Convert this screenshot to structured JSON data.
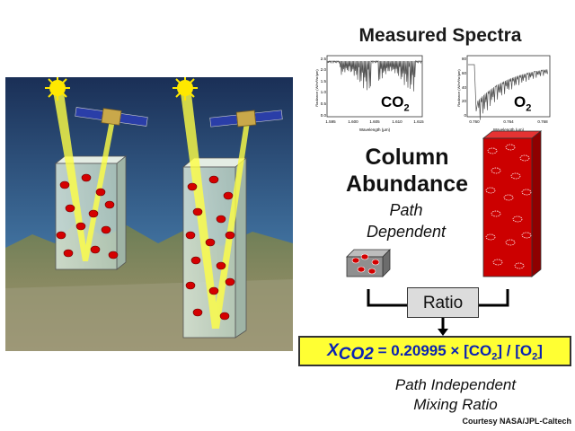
{
  "title": "Measured Spectra",
  "spectra": {
    "co2": {
      "gas_prefix": "CO",
      "gas_sub": "2",
      "y_label": "Radiance (W/m²/sr/µm)",
      "x_label": "Wavelength (µm)",
      "x_ticks": [
        "1.595",
        "1.600",
        "1.605",
        "1.610",
        "1.615"
      ],
      "y_ticks": [
        "2.5",
        "2.0",
        "1.5",
        "1.0",
        "0.5",
        "0.0"
      ]
    },
    "o2": {
      "gas_prefix": "O",
      "gas_sub": "2",
      "y_label": "Radiance (W/m²/sr/µm)",
      "x_label": "Wavelength (µm)",
      "x_ticks": [
        "0.760",
        "0.764",
        "0.768"
      ],
      "y_ticks": [
        "80",
        "60",
        "40",
        "20",
        "0"
      ]
    }
  },
  "column_abundance": {
    "line1": "Column",
    "line2": "Abundance"
  },
  "path_dependent": {
    "line1": "Path",
    "line2": "Dependent"
  },
  "ratio_label": "Ratio",
  "equation": {
    "var": "X",
    "var_sub": "CO2",
    "body": " = 0.20995 × [CO",
    "sub1": "2",
    "mid": "] / [O",
    "sub2": "2",
    "end": "]"
  },
  "path_independent": {
    "line1": "Path Independent",
    "line2": "Mixing Ratio"
  },
  "credit": "Courtesy NASA/JPL-Caltech",
  "colors": {
    "sky": "#1c3a66",
    "beam": "#ffff44",
    "sun": "#ffe800",
    "molecule": "#d40000",
    "equation_bg": "#ffff33",
    "equation_text": "#0b22b3",
    "column_red": "#cc0000"
  }
}
